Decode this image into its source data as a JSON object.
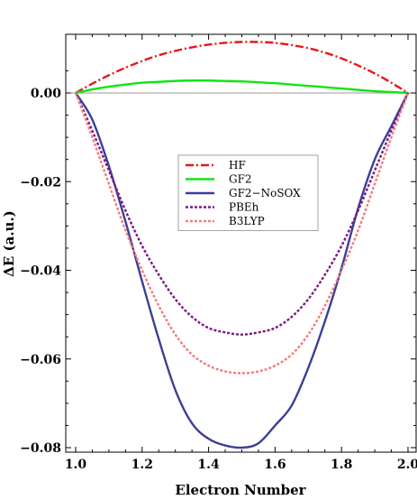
{
  "chart_data": {
    "type": "line",
    "xlabel": "Electron Number",
    "ylabel": "ΔE (a.u.)",
    "xlim": [
      1.0,
      2.0
    ],
    "ylim": [
      -0.081,
      0.0135
    ],
    "x_ticks": [
      1.0,
      1.2,
      1.4,
      1.6,
      1.8,
      2.0
    ],
    "x_tick_labels": [
      "1.0",
      "1.2",
      "1.4",
      "1.6",
      "1.8",
      "2.0"
    ],
    "y_ticks": [
      0.0,
      -0.02,
      -0.04,
      -0.06,
      -0.08
    ],
    "y_tick_labels": [
      "0.00",
      "−0.02",
      "−0.04",
      "−0.06",
      "−0.08"
    ],
    "zero_line": true,
    "legend_position": "center",
    "x": [
      1.0,
      1.05,
      1.1,
      1.15,
      1.2,
      1.25,
      1.3,
      1.35,
      1.4,
      1.45,
      1.5,
      1.55,
      1.6,
      1.65,
      1.7,
      1.75,
      1.8,
      1.85,
      1.9,
      1.95,
      2.0
    ],
    "series": [
      {
        "name": "HF",
        "color": "#e8161b",
        "dash": "dashdot",
        "values": [
          0.0,
          0.0021,
          0.004,
          0.0057,
          0.0072,
          0.0085,
          0.0095,
          0.0103,
          0.0109,
          0.0113,
          0.0115,
          0.0115,
          0.0113,
          0.0108,
          0.0101,
          0.0091,
          0.0078,
          0.0062,
          0.0044,
          0.0023,
          0.0
        ]
      },
      {
        "name": "GF2",
        "color": "#11e411",
        "dash": "solid",
        "values": [
          0.0,
          0.0008,
          0.0014,
          0.0019,
          0.0023,
          0.0025,
          0.0027,
          0.0028,
          0.0028,
          0.0027,
          0.0026,
          0.0024,
          0.0022,
          0.0019,
          0.0016,
          0.0013,
          0.001,
          0.0007,
          0.0004,
          0.0002,
          0.0
        ]
      },
      {
        "name": "GF2−NoSOX",
        "color": "#3b3f96",
        "dash": "solid",
        "values": [
          0.0,
          -0.006,
          -0.0165,
          -0.029,
          -0.0425,
          -0.0555,
          -0.067,
          -0.0745,
          -0.078,
          -0.0795,
          -0.08,
          -0.079,
          -0.075,
          -0.0705,
          -0.062,
          -0.0515,
          -0.0395,
          -0.026,
          -0.015,
          -0.0075,
          0.0
        ]
      },
      {
        "name": "PBEh",
        "color": "#7b1a82",
        "dash": "dotted",
        "values": [
          0.0,
          -0.0085,
          -0.0175,
          -0.0265,
          -0.0345,
          -0.041,
          -0.0465,
          -0.0505,
          -0.053,
          -0.054,
          -0.0545,
          -0.054,
          -0.053,
          -0.0505,
          -0.0465,
          -0.041,
          -0.0345,
          -0.0265,
          -0.0175,
          -0.0085,
          0.0
        ]
      },
      {
        "name": "B3LYP",
        "color": "#f47b7b",
        "dash": "dotted",
        "values": [
          0.0,
          -0.01,
          -0.0205,
          -0.031,
          -0.04,
          -0.048,
          -0.0545,
          -0.059,
          -0.0615,
          -0.0628,
          -0.0632,
          -0.0628,
          -0.0615,
          -0.059,
          -0.0545,
          -0.048,
          -0.04,
          -0.031,
          -0.0205,
          -0.01,
          0.0
        ]
      }
    ]
  }
}
